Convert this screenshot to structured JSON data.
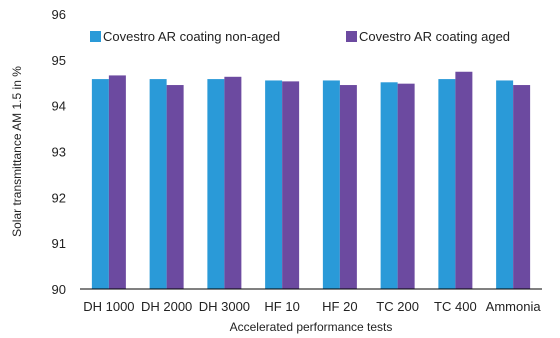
{
  "chart_data": {
    "type": "bar",
    "title": "",
    "xlabel": "Accelerated performance tests",
    "ylabel": "Solar transmittance AM 1.5 in %",
    "ylim": [
      90,
      96
    ],
    "yticks": [
      "90",
      "91",
      "92",
      "93",
      "94",
      "95",
      "96"
    ],
    "grid": false,
    "legend_position": "top",
    "categories": [
      "DH 1000",
      "DH 2000",
      "DH 3000",
      "HF 10",
      "HF 20",
      "TC 200",
      "TC 400",
      "Ammonia"
    ],
    "series": [
      {
        "name": "Covestro AR coating non-aged",
        "color": "#2a9ad8",
        "values": [
          94.58,
          94.58,
          94.58,
          94.55,
          94.55,
          94.51,
          94.58,
          94.55
        ]
      },
      {
        "name": "Covestro AR coating aged",
        "color": "#6c4aa0",
        "values": [
          94.66,
          94.45,
          94.63,
          94.53,
          94.45,
          94.48,
          94.74,
          94.45
        ]
      }
    ]
  }
}
